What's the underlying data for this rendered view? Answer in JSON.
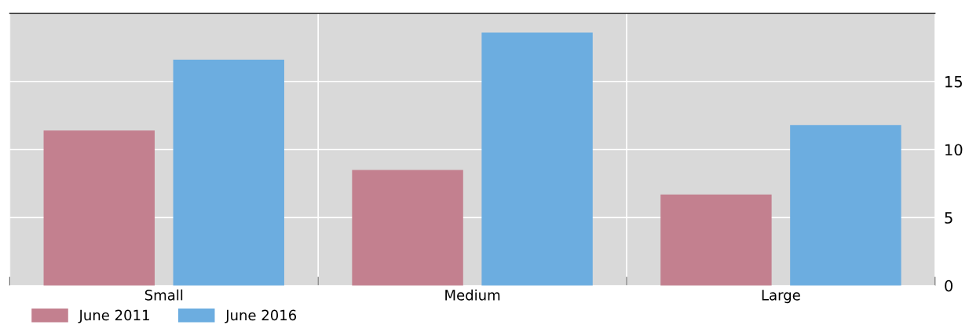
{
  "chart_data": {
    "type": "bar",
    "categories": [
      "Small",
      "Medium",
      "Large"
    ],
    "series": [
      {
        "name": "June 2011",
        "color": "#c3808f",
        "values": [
          11.4,
          8.5,
          6.7
        ]
      },
      {
        "name": "June 2016",
        "color": "#6cade0",
        "values": [
          16.6,
          18.6,
          11.8
        ]
      }
    ],
    "ylim": [
      0,
      20
    ],
    "yticks": [
      0,
      5,
      10,
      15
    ],
    "grid": true,
    "legend": "bottom left"
  }
}
